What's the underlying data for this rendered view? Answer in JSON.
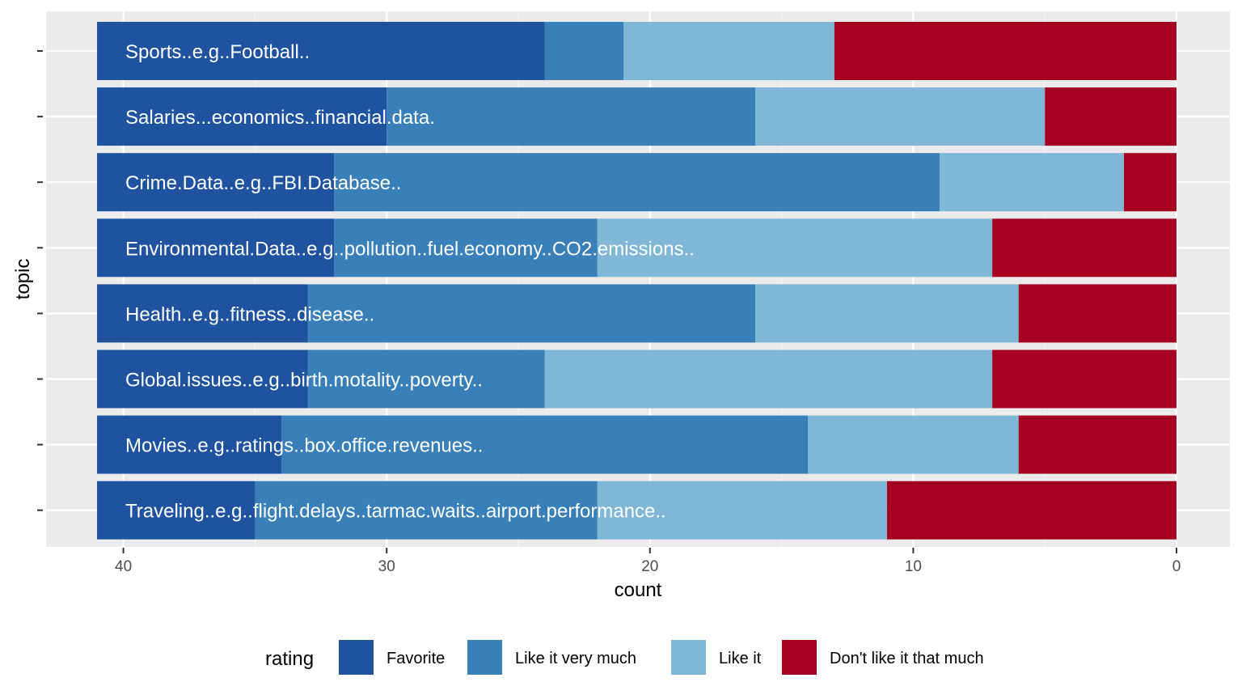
{
  "chart_data": {
    "type": "bar",
    "orientation": "horizontal",
    "stacked": true,
    "x_reversed": true,
    "xlabel": "count",
    "ylabel": "topic",
    "xlim": [
      0,
      41
    ],
    "x_ticks": [
      40,
      30,
      20,
      10,
      0
    ],
    "grid": true,
    "legend_position": "bottom",
    "legend_title": "rating",
    "categories": [
      "Sports..e.g..Football..",
      "Salaries...economics..financial.data.",
      "Crime.Data..e.g..FBI.Database..",
      "Environmental.Data..e.g..pollution..fuel.economy..CO2.emissions..",
      "Health..e.g..fitness..disease..",
      "Global.issues..e.g..birth.motality..poverty..",
      "Movies..e.g..ratings..box.office.revenues..",
      "Traveling..e.g..flight.delays..tarmac.waits..airport.performance.."
    ],
    "series": [
      {
        "name": "Favorite",
        "color": "#1f53a0",
        "values": [
          17,
          11,
          9,
          9,
          8,
          8,
          7,
          6
        ]
      },
      {
        "name": "Like it very much",
        "color": "#3a80b8",
        "values": [
          3,
          14,
          23,
          10,
          17,
          9,
          20,
          13
        ]
      },
      {
        "name": "Like it",
        "color": "#80b6d6",
        "values": [
          8,
          11,
          7,
          15,
          10,
          17,
          8,
          11
        ]
      },
      {
        "name": "Don't like it that much",
        "color": "#a50021",
        "values": [
          13,
          5,
          2,
          7,
          6,
          7,
          6,
          11
        ]
      }
    ]
  }
}
